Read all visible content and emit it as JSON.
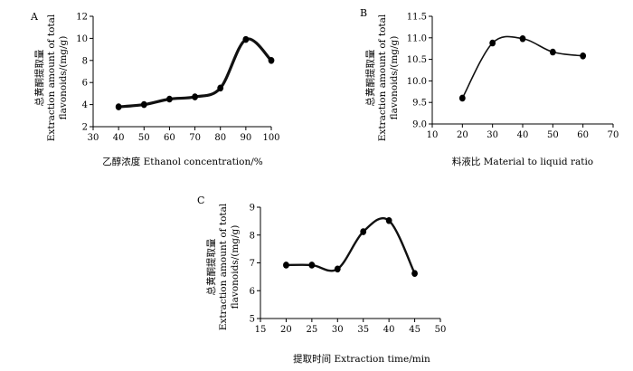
{
  "chart_data": [
    {
      "panel": "A",
      "type": "line",
      "x": [
        40,
        50,
        60,
        70,
        80,
        90,
        100
      ],
      "series": [
        {
          "values": [
            3.8,
            4.0,
            4.5,
            4.7,
            5.5,
            9.9,
            8.0
          ]
        }
      ],
      "xlabel": "乙醇浓度 Ethanol concentration/%",
      "ylabel": [
        "总黄酮提取量",
        "Extraction amount of total",
        "flavonoids/(mg/g)"
      ],
      "xlim": [
        30,
        100
      ],
      "ylim": [
        2,
        12
      ],
      "xticks": [
        "30",
        "40",
        "50",
        "60",
        "70",
        "80",
        "90",
        "100"
      ],
      "yticks": [
        "2",
        "4",
        "6",
        "8",
        "10",
        "12"
      ],
      "grid": false
    },
    {
      "panel": "B",
      "type": "line",
      "x": [
        20,
        30,
        40,
        50,
        60
      ],
      "series": [
        {
          "values": [
            9.6,
            10.88,
            10.98,
            10.67,
            10.58
          ]
        }
      ],
      "xlabel": "料液比 Material to liquid ratio",
      "ylabel": [
        "总黄酮提取量",
        "Extraction amount of total",
        "flavonoids/(mg/g)"
      ],
      "xlim": [
        10,
        70
      ],
      "ylim": [
        9.0,
        11.5
      ],
      "xticks": [
        "10",
        "20",
        "30",
        "40",
        "50",
        "60",
        "70"
      ],
      "yticks": [
        "9.0",
        "9.5",
        "10.0",
        "10.5",
        "11.0",
        "11.5"
      ],
      "grid": false
    },
    {
      "panel": "C",
      "type": "line",
      "x": [
        20,
        25,
        30,
        35,
        40,
        45
      ],
      "series": [
        {
          "values": [
            6.92,
            6.92,
            6.78,
            8.12,
            8.52,
            6.62
          ]
        }
      ],
      "xlabel": "提取时间 Extraction time/min",
      "ylabel": [
        "总黄酮提取量",
        "Extraction amount of total",
        "flavonoids/(mg/g)"
      ],
      "xlim": [
        15,
        50
      ],
      "ylim": [
        5,
        9
      ],
      "xticks": [
        "15",
        "20",
        "25",
        "30",
        "35",
        "40",
        "45",
        "50"
      ],
      "yticks": [
        "5",
        "6",
        "7",
        "8",
        "9"
      ],
      "grid": false
    }
  ]
}
